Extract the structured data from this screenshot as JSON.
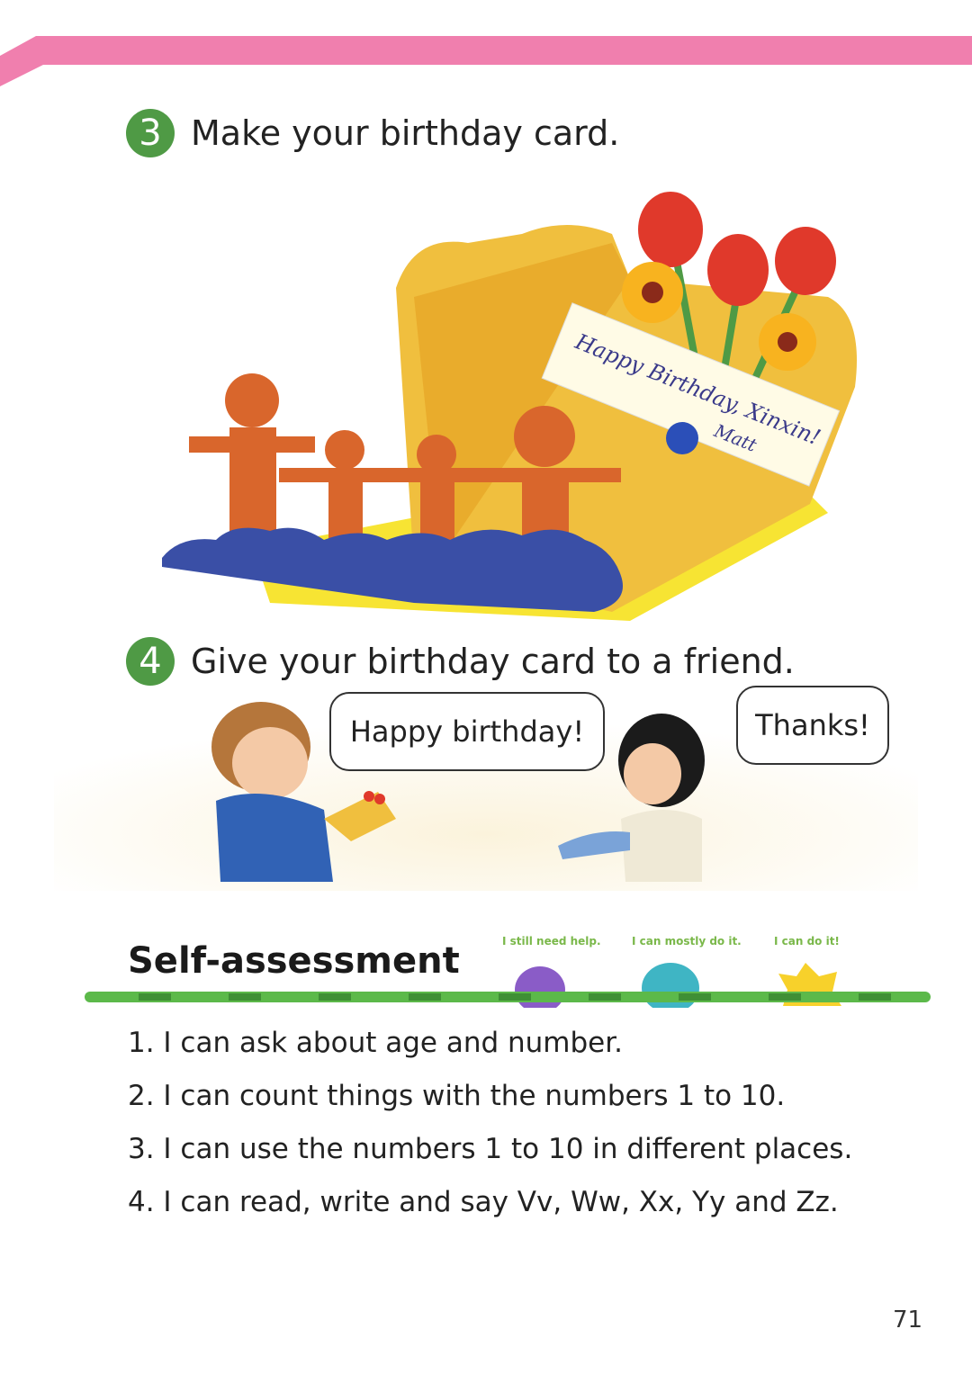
{
  "header": {
    "band_color": "#f07fae"
  },
  "steps": [
    {
      "number": "3",
      "text": "Make your birthday card."
    },
    {
      "number": "4",
      "text": "Give your birthday card to a friend."
    }
  ],
  "card": {
    "banner_line1": "Happy Birthday, Xinxin!",
    "signature": "Matt"
  },
  "dialogue": {
    "boy": "Happy birthday!",
    "girl": "Thanks!"
  },
  "self_assessment": {
    "title": "Self-assessment",
    "ratings": [
      "I still need help.",
      "I can mostly do it.",
      "I can do it!"
    ],
    "items": [
      "1. I can ask about age and number.",
      "2. I can count things with the numbers 1 to 10.",
      "3. I can use the numbers 1 to 10 in different places.",
      "4. I can read, write and say Vv, Ww, Xx, Yy and Zz."
    ]
  },
  "page_number": "71",
  "colors": {
    "accent_green": "#4f9a45",
    "bar_green": "#5cb94a",
    "card_yellow": "#f2c443"
  }
}
